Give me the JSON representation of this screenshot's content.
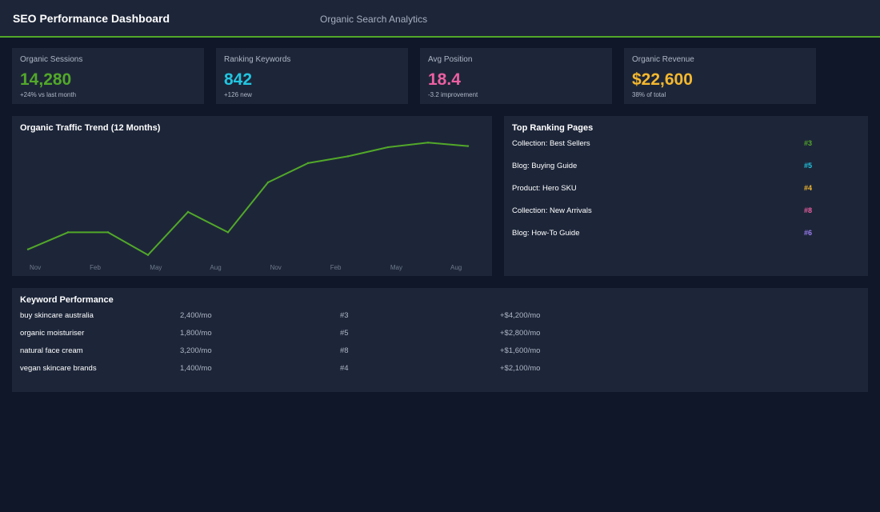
{
  "header": {
    "title": "SEO Performance Dashboard",
    "subtitle": "Organic Search Analytics"
  },
  "colors": {
    "green": "#52a829",
    "cyan": "#22c5e0",
    "pink": "#ec5fa1",
    "amber": "#f5b82e",
    "purple": "#9b7df0"
  },
  "kpis": [
    {
      "label": "Organic Sessions",
      "value": "14,280",
      "sub": "+24% vs last month",
      "color": "#52a829"
    },
    {
      "label": "Ranking Keywords",
      "value": "842",
      "sub": "+126 new",
      "color": "#22c5e0"
    },
    {
      "label": "Avg Position",
      "value": "18.4",
      "sub": "-3.2 improvement",
      "color": "#ec5fa1"
    },
    {
      "label": "Organic Revenue",
      "value": "$22,600",
      "sub": "38% of total",
      "color": "#f5b82e"
    }
  ],
  "traffic": {
    "title": "Organic Traffic Trend (12 Months)"
  },
  "chart_data": {
    "type": "line",
    "title": "Organic Traffic Trend (12 Months)",
    "x_tick_labels": [
      "Nov",
      "Feb",
      "May",
      "Aug",
      "Nov",
      "Feb",
      "May",
      "Aug"
    ],
    "series": [
      {
        "values": [
          0.08,
          0.23,
          0.23,
          0.03,
          0.41,
          0.23,
          0.67,
          0.84,
          0.9,
          0.98,
          1.02,
          0.99
        ],
        "color": "#52a829"
      }
    ],
    "ylim": [
      0,
      1.1
    ],
    "grid": false,
    "legend": "none"
  },
  "top_pages": {
    "title": "Top Ranking Pages",
    "items": [
      {
        "name": "Collection: Best Sellers",
        "rank": "#3",
        "color": "#52a829"
      },
      {
        "name": "Blog: Buying Guide",
        "rank": "#5",
        "color": "#22c5e0"
      },
      {
        "name": "Product: Hero SKU",
        "rank": "#4",
        "color": "#f5b82e"
      },
      {
        "name": "Collection: New Arrivals",
        "rank": "#8",
        "color": "#ec5fa1"
      },
      {
        "name": "Blog: How-To Guide",
        "rank": "#6",
        "color": "#9b7df0"
      }
    ]
  },
  "keywords": {
    "title": "Keyword Performance",
    "rows": [
      {
        "term": "buy skincare australia",
        "volume": "2,400/mo",
        "position": "#3",
        "value": "+$4,200/mo"
      },
      {
        "term": "organic moisturiser",
        "volume": "1,800/mo",
        "position": "#5",
        "value": "+$2,800/mo"
      },
      {
        "term": "natural face cream",
        "volume": "3,200/mo",
        "position": "#8",
        "value": "+$1,600/mo"
      },
      {
        "term": "vegan skincare brands",
        "volume": "1,400/mo",
        "position": "#4",
        "value": "+$2,100/mo"
      }
    ]
  }
}
